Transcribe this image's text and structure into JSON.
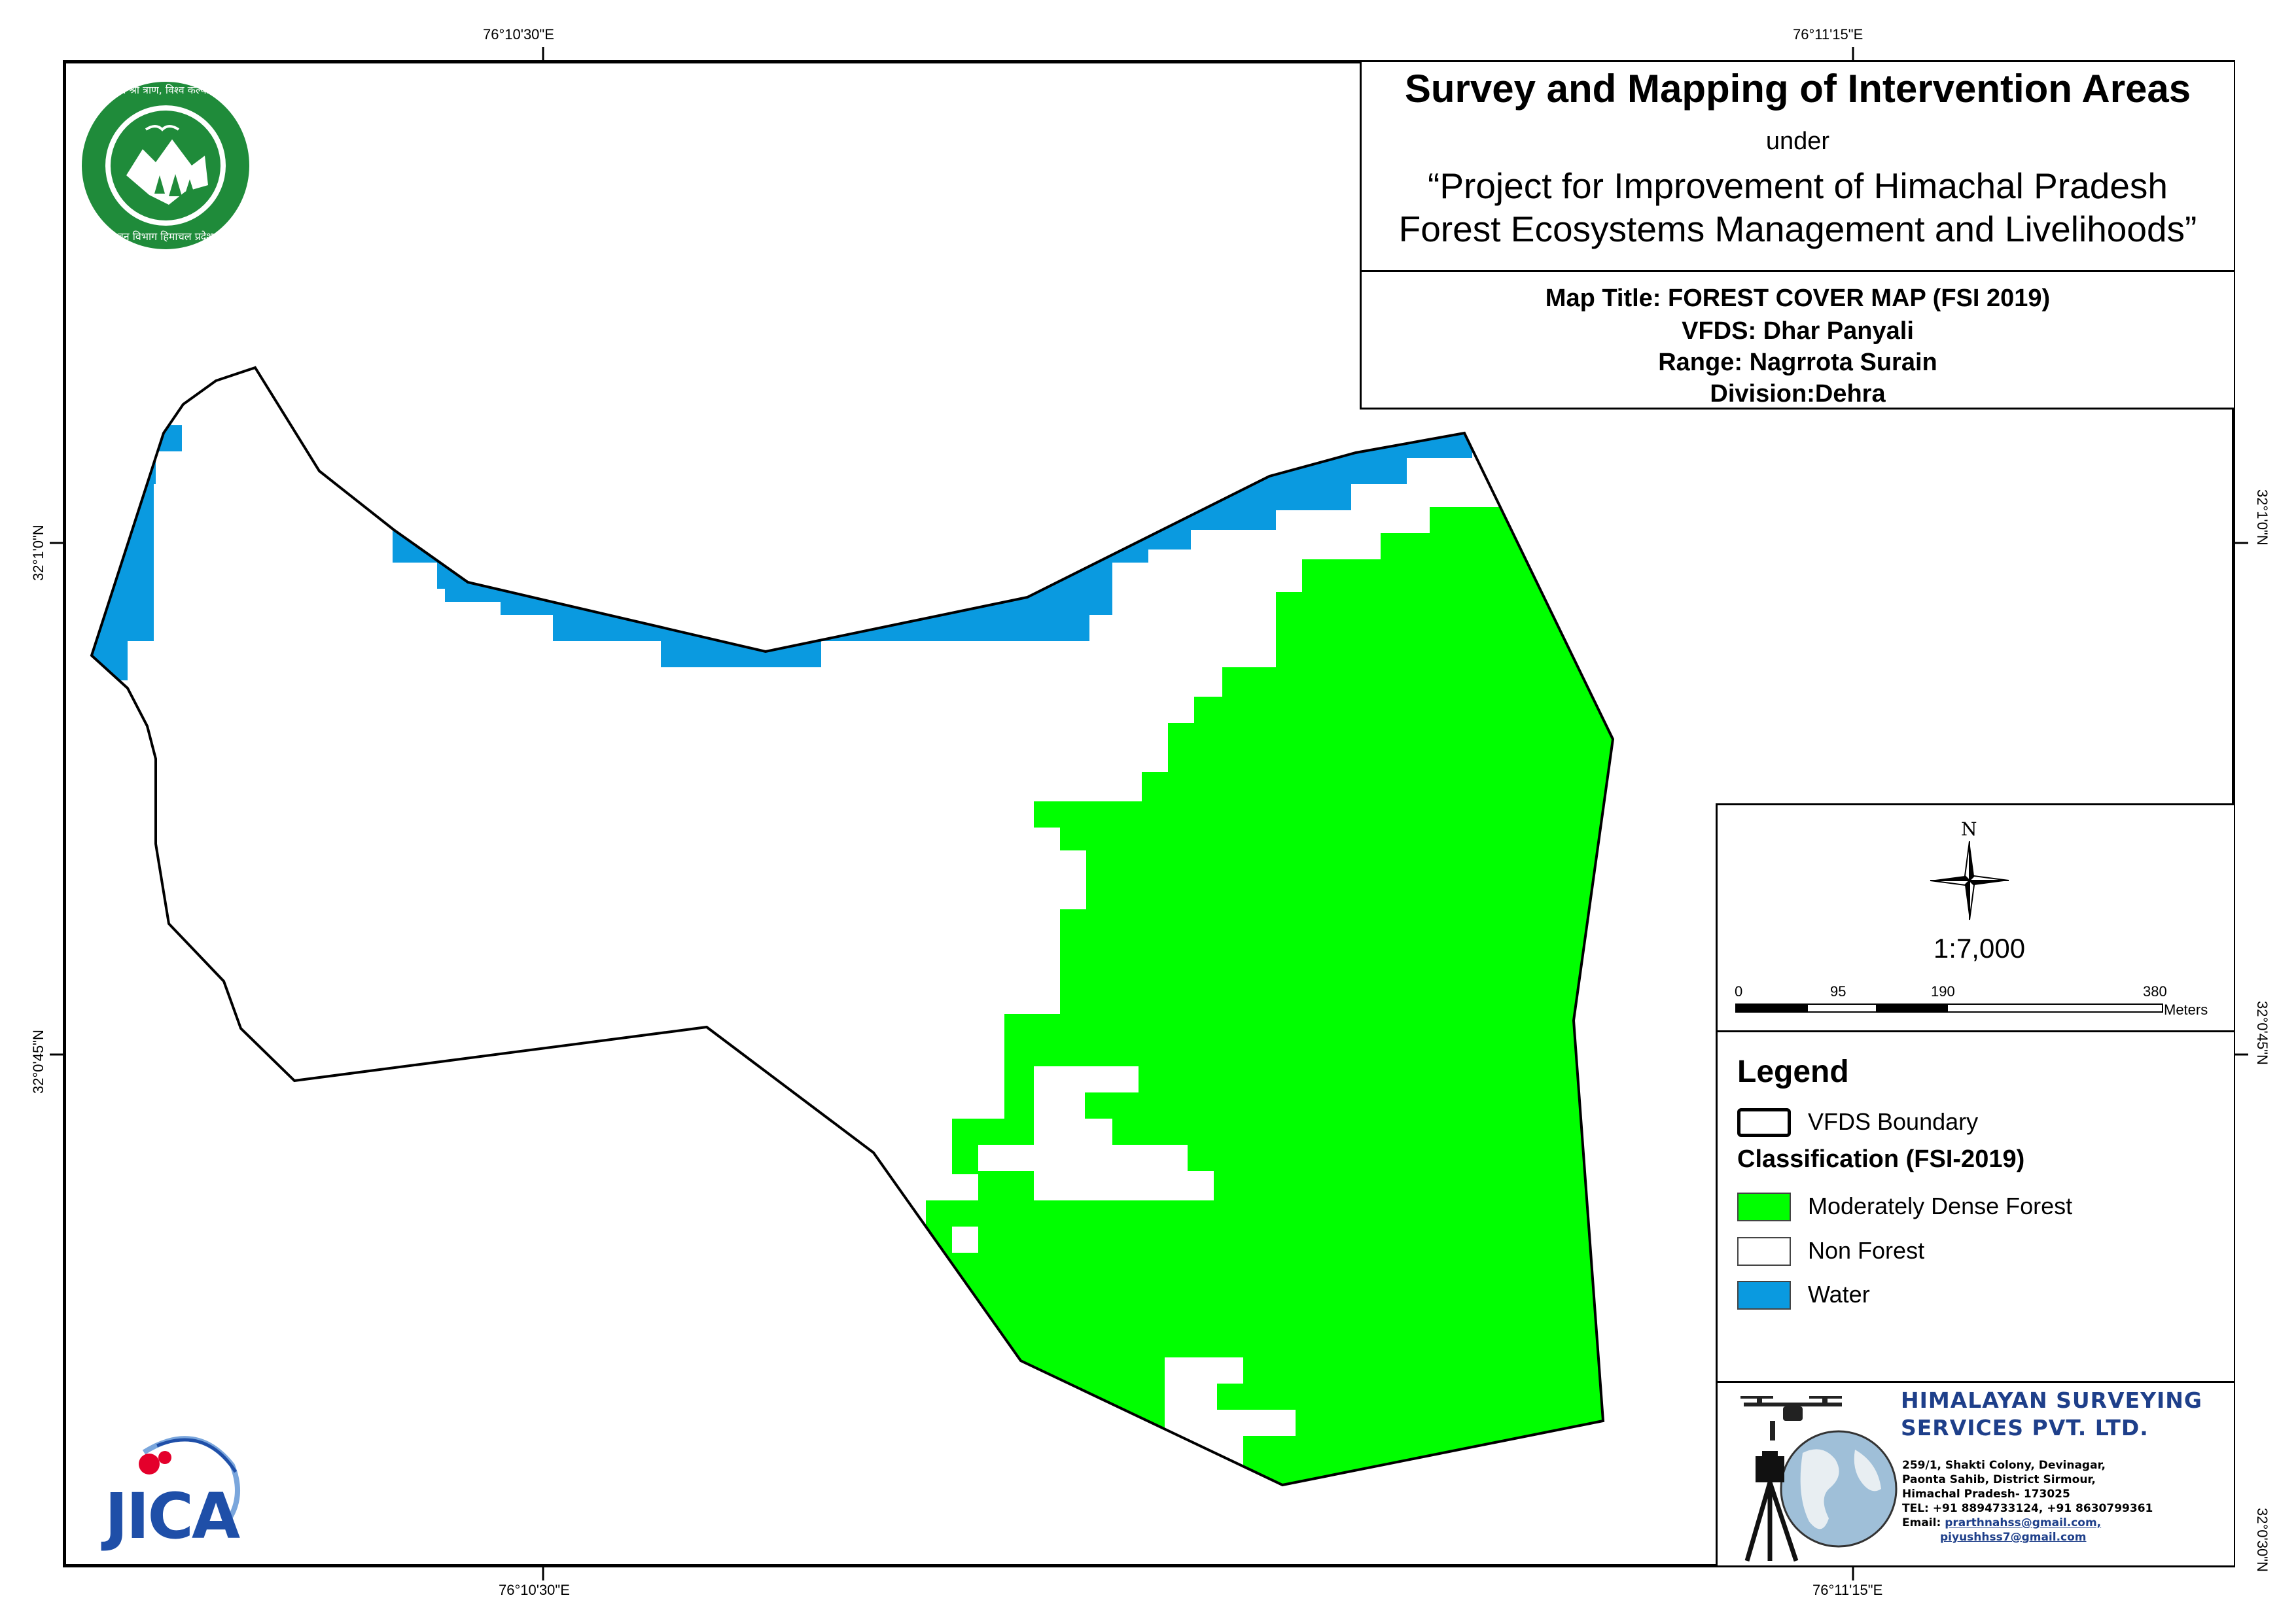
{
  "graticule": {
    "top": [
      "76°10'30\"E",
      "76°11'15\"E"
    ],
    "bottom": [
      "76°10'30\"E",
      "76°11'15\"E"
    ],
    "left": [
      "32°1'0\"N",
      "32°0'45\"N"
    ],
    "right": [
      "32°1'0\"N",
      "32°0'45\"N",
      "32°0'30\"N"
    ]
  },
  "title_block": {
    "main": "Survey and Mapping of Intervention Areas",
    "under": "under",
    "project_line1": "“Project for Improvement of Himachal Pradesh",
    "project_line2": "Forest Ecosystems Management and Livelihoods”",
    "map_title": "Map Title: FOREST COVER MAP (FSI 2019)",
    "vfds": "VFDS: Dhar Panyali",
    "range": "Range: Nagrrota Surain",
    "division": "Division:Dehra"
  },
  "north_arrow": {
    "label": "N",
    "icon": "compass-rose-icon"
  },
  "scale": {
    "ratio": "1:7,000",
    "ticks": [
      "0",
      "95",
      "190",
      "380"
    ],
    "unit": "Meters"
  },
  "legend": {
    "title": "Legend",
    "boundary_label": "VFDS Boundary",
    "classification_title": "Classification (FSI-2019)",
    "items": [
      {
        "label": "Moderately Dense Forest",
        "color": "#00ff00"
      },
      {
        "label": "Non Forest",
        "color": "#ffffff"
      },
      {
        "label": "Water",
        "color": "#0a9ae0"
      }
    ]
  },
  "company": {
    "name_line1": "HIMALAYAN SURVEYING",
    "name_line2": "SERVICES PVT. LTD.",
    "address_line1": "259/1, Shakti Colony, Devinagar,",
    "address_line2": "Paonta Sahib, District Sirmour,",
    "address_line3": "Himachal Pradesh- 173025",
    "tel": "TEL: +91 8894733124, +91 8630799361",
    "email_label": "Email:",
    "email1": "prarthnahss@gmail.com,",
    "email2": "piyushhss7@gmail.com"
  },
  "logos": {
    "forest_dept": "himachal-forest-department-seal",
    "forest_dept_text_top": "वन श्री त्राण, विश्व कल्याण",
    "forest_dept_text_bottom": "वन विभाग हिमाचल प्रदेश",
    "jica": "JICA"
  },
  "colors": {
    "forest": "#00ff00",
    "water": "#0a9ae0",
    "seal_green": "#1f8b3a",
    "company_blue": "#1e3f8a",
    "jica_blue": "#1f4fa8",
    "jica_red": "#e4002b"
  }
}
